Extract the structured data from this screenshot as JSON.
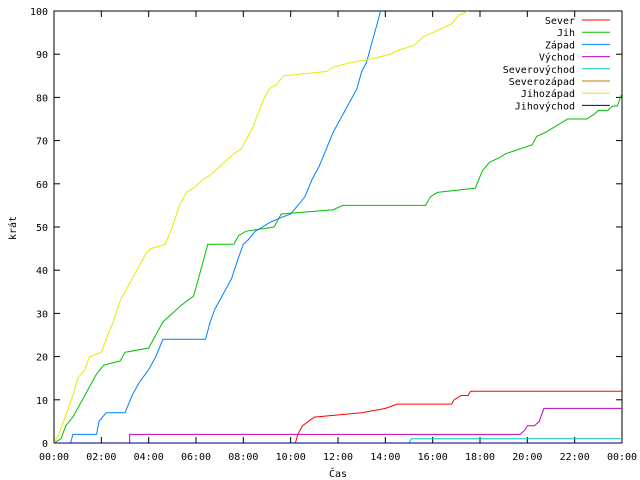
{
  "chart_data": {
    "type": "line",
    "xlabel": "Čas",
    "ylabel": "krát",
    "xlim": [
      0,
      24
    ],
    "ylim": [
      0,
      100
    ],
    "x_ticks": [
      {
        "value": 0,
        "label": "00:00"
      },
      {
        "value": 2,
        "label": "02:00"
      },
      {
        "value": 4,
        "label": "04:00"
      },
      {
        "value": 6,
        "label": "06:00"
      },
      {
        "value": 8,
        "label": "08:00"
      },
      {
        "value": 10,
        "label": "10:00"
      },
      {
        "value": 12,
        "label": "12:00"
      },
      {
        "value": 14,
        "label": "14:00"
      },
      {
        "value": 16,
        "label": "16:00"
      },
      {
        "value": 18,
        "label": "18:00"
      },
      {
        "value": 20,
        "label": "20:00"
      },
      {
        "value": 22,
        "label": "22:00"
      },
      {
        "value": 24,
        "label": "00:00"
      }
    ],
    "y_ticks": [
      0,
      10,
      20,
      30,
      40,
      50,
      60,
      70,
      80,
      90,
      100
    ],
    "grid": false,
    "legend_position": "top-right",
    "series": [
      {
        "name": "Sever",
        "color": "#ff0000",
        "points": [
          [
            0,
            0
          ],
          [
            10.2,
            0
          ],
          [
            10.3,
            2
          ],
          [
            10.5,
            4
          ],
          [
            11.0,
            6
          ],
          [
            13.0,
            7
          ],
          [
            14.0,
            8
          ],
          [
            14.5,
            9
          ],
          [
            16.8,
            9
          ],
          [
            16.9,
            10
          ],
          [
            17.2,
            11
          ],
          [
            17.5,
            11
          ],
          [
            17.6,
            12
          ],
          [
            24,
            12
          ]
        ]
      },
      {
        "name": "Jih",
        "color": "#00c000",
        "points": [
          [
            0,
            0
          ],
          [
            0.3,
            1
          ],
          [
            0.5,
            4
          ],
          [
            0.8,
            6
          ],
          [
            1.0,
            8
          ],
          [
            1.3,
            11
          ],
          [
            1.5,
            13
          ],
          [
            1.8,
            16
          ],
          [
            2.1,
            18
          ],
          [
            2.8,
            19
          ],
          [
            3.0,
            21
          ],
          [
            4.0,
            22
          ],
          [
            4.3,
            25
          ],
          [
            4.6,
            28
          ],
          [
            5.0,
            30
          ],
          [
            5.4,
            32
          ],
          [
            5.9,
            34
          ],
          [
            6.1,
            38
          ],
          [
            6.3,
            42
          ],
          [
            6.5,
            46
          ],
          [
            7.6,
            46
          ],
          [
            7.8,
            48
          ],
          [
            8.1,
            49
          ],
          [
            9.3,
            50
          ],
          [
            9.6,
            53
          ],
          [
            11.8,
            54
          ],
          [
            12.2,
            55
          ],
          [
            15.7,
            55
          ],
          [
            15.9,
            57
          ],
          [
            16.2,
            58
          ],
          [
            17.8,
            59
          ],
          [
            18.1,
            63
          ],
          [
            18.4,
            65
          ],
          [
            18.8,
            66
          ],
          [
            19.1,
            67
          ],
          [
            20.2,
            69
          ],
          [
            20.4,
            71
          ],
          [
            20.8,
            72
          ],
          [
            21.1,
            73
          ],
          [
            21.4,
            74
          ],
          [
            21.7,
            75
          ],
          [
            22.5,
            75
          ],
          [
            22.8,
            76
          ],
          [
            23.0,
            77
          ],
          [
            23.4,
            77
          ],
          [
            23.6,
            78
          ],
          [
            23.8,
            78
          ],
          [
            24.0,
            81
          ]
        ]
      },
      {
        "name": "Západ",
        "color": "#0080ff",
        "points": [
          [
            0,
            0
          ],
          [
            0.7,
            0
          ],
          [
            0.8,
            2
          ],
          [
            1.8,
            2
          ],
          [
            1.9,
            5
          ],
          [
            2.2,
            7
          ],
          [
            3.0,
            7
          ],
          [
            3.3,
            11
          ],
          [
            3.6,
            14
          ],
          [
            4.0,
            17
          ],
          [
            4.3,
            20
          ],
          [
            4.6,
            24
          ],
          [
            6.4,
            24
          ],
          [
            6.6,
            28
          ],
          [
            6.8,
            31
          ],
          [
            7.2,
            35
          ],
          [
            7.5,
            38
          ],
          [
            7.8,
            43
          ],
          [
            8.0,
            46
          ],
          [
            8.2,
            47
          ],
          [
            8.5,
            49
          ],
          [
            8.8,
            50
          ],
          [
            9.1,
            51
          ],
          [
            9.5,
            52
          ],
          [
            10.0,
            53
          ],
          [
            10.3,
            55
          ],
          [
            10.6,
            57
          ],
          [
            10.9,
            61
          ],
          [
            11.2,
            64
          ],
          [
            11.5,
            68
          ],
          [
            11.8,
            72
          ],
          [
            12.1,
            75
          ],
          [
            12.4,
            78
          ],
          [
            12.8,
            82
          ],
          [
            13.0,
            86
          ],
          [
            13.2,
            88
          ],
          [
            13.4,
            92
          ],
          [
            13.6,
            96
          ],
          [
            13.8,
            100
          ]
        ]
      },
      {
        "name": "Východ",
        "color": "#c000c0",
        "points": [
          [
            0,
            0
          ],
          [
            3.2,
            0
          ],
          [
            3.2,
            2
          ],
          [
            8.5,
            2
          ],
          [
            8.6,
            2
          ],
          [
            19.7,
            2
          ],
          [
            19.9,
            3
          ],
          [
            20.0,
            4
          ],
          [
            20.3,
            4
          ],
          [
            20.5,
            5
          ],
          [
            20.7,
            8
          ],
          [
            24,
            8
          ]
        ]
      },
      {
        "name": "Severovýchod",
        "color": "#00c0c0",
        "points": [
          [
            0,
            0
          ],
          [
            15.0,
            0
          ],
          [
            15.1,
            1
          ],
          [
            24,
            1
          ]
        ]
      },
      {
        "name": "Severozápad",
        "color": "#c08000",
        "points": [
          [
            0,
            0
          ],
          [
            24,
            0
          ]
        ]
      },
      {
        "name": "Jihozápad",
        "color": "#e8e800",
        "points": [
          [
            0,
            0
          ],
          [
            0.2,
            2
          ],
          [
            0.4,
            5
          ],
          [
            0.6,
            8
          ],
          [
            0.8,
            11
          ],
          [
            1.0,
            15
          ],
          [
            1.3,
            17
          ],
          [
            1.5,
            20
          ],
          [
            2.0,
            21
          ],
          [
            2.2,
            24
          ],
          [
            2.5,
            28
          ],
          [
            2.8,
            33
          ],
          [
            3.1,
            36
          ],
          [
            3.4,
            39
          ],
          [
            3.7,
            42
          ],
          [
            3.9,
            44
          ],
          [
            4.1,
            45
          ],
          [
            4.7,
            46
          ],
          [
            5.0,
            50
          ],
          [
            5.3,
            55
          ],
          [
            5.6,
            58
          ],
          [
            5.9,
            59
          ],
          [
            6.3,
            61
          ],
          [
            6.6,
            62
          ],
          [
            7.0,
            64
          ],
          [
            7.4,
            66
          ],
          [
            7.6,
            67
          ],
          [
            7.9,
            68
          ],
          [
            8.1,
            70
          ],
          [
            8.4,
            73
          ],
          [
            8.6,
            76
          ],
          [
            8.9,
            80
          ],
          [
            9.1,
            82
          ],
          [
            9.4,
            83
          ],
          [
            9.7,
            85
          ],
          [
            11.5,
            86
          ],
          [
            11.8,
            87
          ],
          [
            12.5,
            88
          ],
          [
            13.5,
            89
          ],
          [
            14.2,
            90
          ],
          [
            14.6,
            91
          ],
          [
            15.2,
            92
          ],
          [
            15.6,
            94
          ],
          [
            16.0,
            95
          ],
          [
            16.4,
            96
          ],
          [
            16.8,
            97
          ],
          [
            17.1,
            99
          ],
          [
            17.5,
            100
          ]
        ]
      },
      {
        "name": "Jihovýchod",
        "color": "#000080",
        "points": [
          [
            0,
            0
          ],
          [
            24,
            0
          ]
        ]
      }
    ]
  }
}
